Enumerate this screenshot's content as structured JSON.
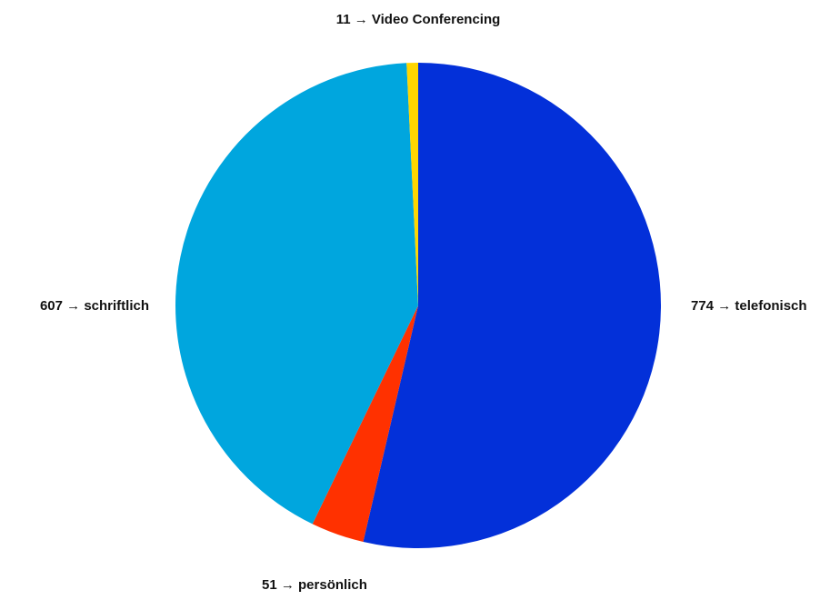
{
  "chart_data": {
    "type": "pie",
    "title": "",
    "slices": [
      {
        "label": "telefonisch",
        "value": 774,
        "display": "774 → telefonisch",
        "color": "#0330D9"
      },
      {
        "label": "persönlich",
        "value": 51,
        "display": "51 → persönlich",
        "color": "#FF3100"
      },
      {
        "label": "schriftlich",
        "value": 607,
        "display": "607 → schriftlich",
        "color": "#00A6DE"
      },
      {
        "label": "Video Conferencing",
        "value": 11,
        "display": "11 → Video Conferencing",
        "color": "#FFD600"
      }
    ],
    "start_angle": "12 o'clock",
    "direction": "clockwise",
    "legend": "none",
    "labels": "outside"
  }
}
